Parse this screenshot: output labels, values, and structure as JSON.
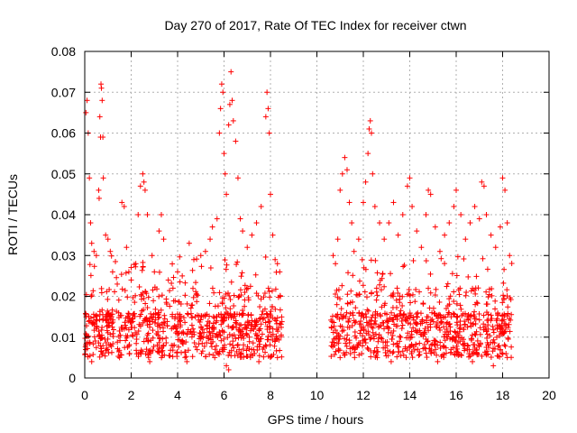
{
  "chart_data": {
    "type": "scatter",
    "title": "Day 270 of 2017, Rate Of TEC Index for receiver ctwn",
    "xlabel": "GPS time / hours",
    "ylabel": "ROTI / TECUs",
    "xlim": [
      0,
      20
    ],
    "ylim": [
      0,
      0.08
    ],
    "x_ticks": [
      "0",
      "2",
      "4",
      "6",
      "8",
      "10",
      "12",
      "14",
      "16",
      "18",
      "20"
    ],
    "y_ticks": [
      "0",
      "0.01",
      "0.02",
      "0.03",
      "0.04",
      "0.05",
      "0.06",
      "0.07",
      "0.08"
    ],
    "grid": true,
    "marker": "+",
    "series": [
      {
        "color": "#ff0000",
        "points": [
          [
            0.05,
            0.065
          ],
          [
            0.1,
            0.068
          ],
          [
            0.15,
            0.06
          ],
          [
            0.2,
            0.049
          ],
          [
            0.25,
            0.038
          ],
          [
            0.3,
            0.033
          ],
          [
            0.4,
            0.031
          ],
          [
            0.5,
            0.03
          ],
          [
            0.6,
            0.046
          ],
          [
            0.62,
            0.044
          ],
          [
            0.65,
            0.064
          ],
          [
            0.68,
            0.059
          ],
          [
            0.7,
            0.072
          ],
          [
            0.72,
            0.071
          ],
          [
            0.75,
            0.068
          ],
          [
            0.78,
            0.059
          ],
          [
            0.8,
            0.049
          ],
          [
            0.9,
            0.035
          ],
          [
            1.0,
            0.034
          ],
          [
            1.1,
            0.031
          ],
          [
            1.2,
            0.026
          ],
          [
            1.4,
            0.023
          ],
          [
            1.6,
            0.043
          ],
          [
            1.7,
            0.042
          ],
          [
            1.8,
            0.032
          ],
          [
            1.9,
            0.026
          ],
          [
            2.0,
            0.024
          ],
          [
            2.2,
            0.028
          ],
          [
            2.3,
            0.04
          ],
          [
            2.4,
            0.047
          ],
          [
            2.5,
            0.05
          ],
          [
            2.55,
            0.048
          ],
          [
            2.6,
            0.046
          ],
          [
            2.7,
            0.04
          ],
          [
            2.9,
            0.03
          ],
          [
            3.0,
            0.026
          ],
          [
            3.2,
            0.036
          ],
          [
            3.3,
            0.04
          ],
          [
            3.4,
            0.034
          ],
          [
            3.6,
            0.024
          ],
          [
            3.8,
            0.022
          ],
          [
            4.0,
            0.026
          ],
          [
            4.2,
            0.025
          ],
          [
            4.5,
            0.033
          ],
          [
            4.7,
            0.029
          ],
          [
            5.0,
            0.03
          ],
          [
            5.2,
            0.031
          ],
          [
            5.4,
            0.034
          ],
          [
            5.5,
            0.037
          ],
          [
            5.7,
            0.039
          ],
          [
            5.8,
            0.06
          ],
          [
            5.85,
            0.066
          ],
          [
            5.9,
            0.072
          ],
          [
            5.95,
            0.07
          ],
          [
            6.0,
            0.055
          ],
          [
            6.05,
            0.05
          ],
          [
            6.1,
            0.045
          ],
          [
            6.2,
            0.062
          ],
          [
            6.25,
            0.067
          ],
          [
            6.3,
            0.075
          ],
          [
            6.35,
            0.068
          ],
          [
            6.4,
            0.063
          ],
          [
            6.5,
            0.058
          ],
          [
            6.6,
            0.049
          ],
          [
            6.7,
            0.039
          ],
          [
            6.8,
            0.036
          ],
          [
            7.0,
            0.032
          ],
          [
            7.2,
            0.035
          ],
          [
            7.4,
            0.038
          ],
          [
            7.6,
            0.042
          ],
          [
            7.8,
            0.064
          ],
          [
            7.85,
            0.07
          ],
          [
            7.9,
            0.066
          ],
          [
            7.95,
            0.06
          ],
          [
            8.0,
            0.045
          ],
          [
            8.1,
            0.035
          ],
          [
            8.2,
            0.029
          ],
          [
            8.3,
            0.028
          ],
          [
            8.4,
            0.026
          ],
          [
            10.7,
            0.03
          ],
          [
            10.8,
            0.028
          ],
          [
            10.9,
            0.034
          ],
          [
            11.0,
            0.046
          ],
          [
            11.1,
            0.05
          ],
          [
            11.2,
            0.054
          ],
          [
            11.3,
            0.051
          ],
          [
            11.4,
            0.043
          ],
          [
            11.5,
            0.038
          ],
          [
            11.6,
            0.031
          ],
          [
            11.8,
            0.034
          ],
          [
            12.0,
            0.043
          ],
          [
            12.1,
            0.048
          ],
          [
            12.2,
            0.055
          ],
          [
            12.25,
            0.061
          ],
          [
            12.3,
            0.063
          ],
          [
            12.35,
            0.06
          ],
          [
            12.4,
            0.05
          ],
          [
            12.5,
            0.042
          ],
          [
            12.7,
            0.038
          ],
          [
            12.9,
            0.034
          ],
          [
            13.1,
            0.038
          ],
          [
            13.3,
            0.043
          ],
          [
            13.5,
            0.035
          ],
          [
            13.7,
            0.04
          ],
          [
            13.9,
            0.047
          ],
          [
            14.0,
            0.049
          ],
          [
            14.1,
            0.042
          ],
          [
            14.3,
            0.036
          ],
          [
            14.5,
            0.032
          ],
          [
            14.7,
            0.04
          ],
          [
            14.8,
            0.046
          ],
          [
            14.9,
            0.045
          ],
          [
            15.1,
            0.037
          ],
          [
            15.3,
            0.031
          ],
          [
            15.5,
            0.035
          ],
          [
            15.7,
            0.038
          ],
          [
            15.9,
            0.042
          ],
          [
            16.0,
            0.046
          ],
          [
            16.2,
            0.04
          ],
          [
            16.4,
            0.034
          ],
          [
            16.6,
            0.038
          ],
          [
            16.8,
            0.042
          ],
          [
            17.0,
            0.039
          ],
          [
            17.1,
            0.048
          ],
          [
            17.2,
            0.047
          ],
          [
            17.3,
            0.04
          ],
          [
            17.5,
            0.035
          ],
          [
            17.7,
            0.032
          ],
          [
            17.9,
            0.037
          ],
          [
            18.0,
            0.049
          ],
          [
            18.1,
            0.046
          ],
          [
            18.2,
            0.038
          ],
          [
            18.3,
            0.03
          ],
          [
            0.3,
            0.004
          ],
          [
            1.5,
            0.005
          ],
          [
            2.8,
            0.004
          ],
          [
            4.4,
            0.004
          ],
          [
            5.6,
            0.005
          ],
          [
            6.1,
            0.003
          ],
          [
            6.2,
            0.002
          ],
          [
            7.5,
            0.004
          ],
          [
            8.3,
            0.005
          ],
          [
            11.0,
            0.005
          ],
          [
            12.6,
            0.005
          ],
          [
            13.2,
            0.004
          ],
          [
            15.2,
            0.004
          ],
          [
            16.7,
            0.004
          ],
          [
            17.6,
            0.003
          ],
          [
            18.2,
            0.005
          ]
        ]
      }
    ],
    "dense_band_segments": [
      {
        "x_start": 0.0,
        "x_end": 8.5,
        "y_low": 0.005,
        "y_mid": 0.012,
        "y_high": 0.03
      },
      {
        "x_start": 10.6,
        "x_end": 18.4,
        "y_low": 0.005,
        "y_mid": 0.012,
        "y_high": 0.03
      }
    ]
  }
}
